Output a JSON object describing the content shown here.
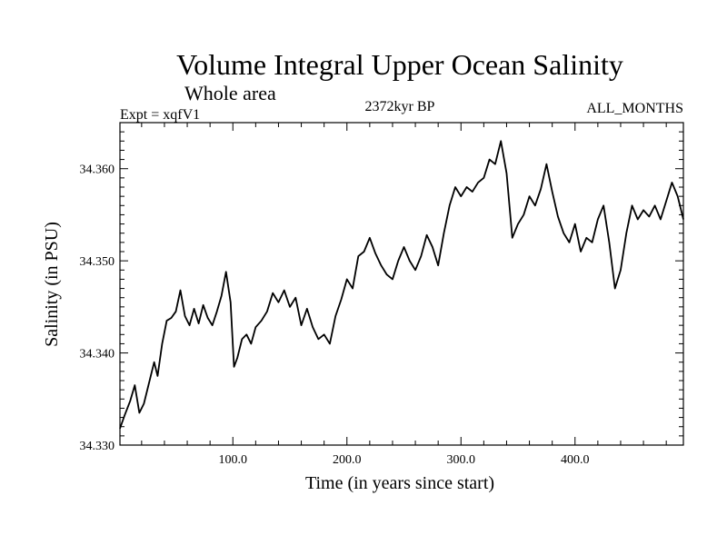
{
  "chart_data": {
    "type": "line",
    "title": "Volume Integral Upper Ocean Salinity",
    "subtitle": "Whole area",
    "left_label": "Expt = xqfV1",
    "center_label": "2372kyr BP",
    "right_label": "ALL_MONTHS",
    "xlabel": "Time (in years since start)",
    "ylabel": "Salinity (in PSU)",
    "xlim": [
      1,
      495
    ],
    "ylim": [
      34.33,
      34.365
    ],
    "x_ticks": [
      100,
      200,
      300,
      400
    ],
    "x_tick_labels": [
      "100.0",
      "200.0",
      "300.0",
      "400.0"
    ],
    "y_ticks": [
      34.33,
      34.34,
      34.35,
      34.36
    ],
    "y_tick_labels": [
      "34.330",
      "34.340",
      "34.350",
      "34.360"
    ],
    "series": [
      {
        "name": "Salinity",
        "x": [
          1,
          5,
          10,
          14,
          18,
          22,
          27,
          31,
          34,
          38,
          42,
          46,
          50,
          54,
          58,
          62,
          66,
          70,
          74,
          78,
          82,
          86,
          90,
          94,
          98,
          101,
          104,
          108,
          112,
          116,
          120,
          125,
          130,
          135,
          140,
          145,
          150,
          155,
          160,
          165,
          170,
          175,
          180,
          185,
          190,
          195,
          200,
          205,
          210,
          215,
          220,
          225,
          230,
          235,
          240,
          245,
          250,
          255,
          260,
          265,
          270,
          275,
          280,
          285,
          290,
          295,
          300,
          305,
          310,
          315,
          320,
          325,
          330,
          335,
          340,
          345,
          350,
          355,
          360,
          365,
          370,
          375,
          380,
          385,
          390,
          395,
          400,
          405,
          410,
          415,
          420,
          425,
          430,
          435,
          440,
          445,
          450,
          455,
          460,
          465,
          470,
          475,
          480,
          485,
          490,
          495
        ],
        "values": [
          34.3318,
          34.3332,
          34.3348,
          34.3365,
          34.3335,
          34.3345,
          34.337,
          34.339,
          34.3375,
          34.341,
          34.3435,
          34.3438,
          34.3445,
          34.3468,
          34.344,
          34.343,
          34.3448,
          34.3432,
          34.3452,
          34.3438,
          34.343,
          34.3445,
          34.3462,
          34.3488,
          34.3455,
          34.3385,
          34.3395,
          34.3415,
          34.342,
          34.341,
          34.3428,
          34.3435,
          34.3445,
          34.3465,
          34.3455,
          34.3468,
          34.345,
          34.346,
          34.343,
          34.3448,
          34.3428,
          34.3415,
          34.342,
          34.341,
          34.344,
          34.3458,
          34.348,
          34.347,
          34.3505,
          34.351,
          34.3525,
          34.3508,
          34.3495,
          34.3485,
          34.348,
          34.35,
          34.3515,
          34.35,
          34.349,
          34.3505,
          34.3528,
          34.3515,
          34.3495,
          34.353,
          34.356,
          34.358,
          34.357,
          34.358,
          34.3575,
          34.3585,
          34.359,
          34.361,
          34.3605,
          34.363,
          34.3595,
          34.3525,
          34.354,
          34.355,
          34.357,
          34.356,
          34.3578,
          34.3605,
          34.3575,
          34.3548,
          34.353,
          34.352,
          34.354,
          34.351,
          34.3525,
          34.352,
          34.3545,
          34.356,
          34.352,
          34.347,
          34.349,
          34.353,
          34.356,
          34.3545,
          34.3555,
          34.3548,
          34.356,
          34.3545,
          34.3565,
          34.3585,
          34.357,
          34.3545
        ]
      }
    ]
  }
}
